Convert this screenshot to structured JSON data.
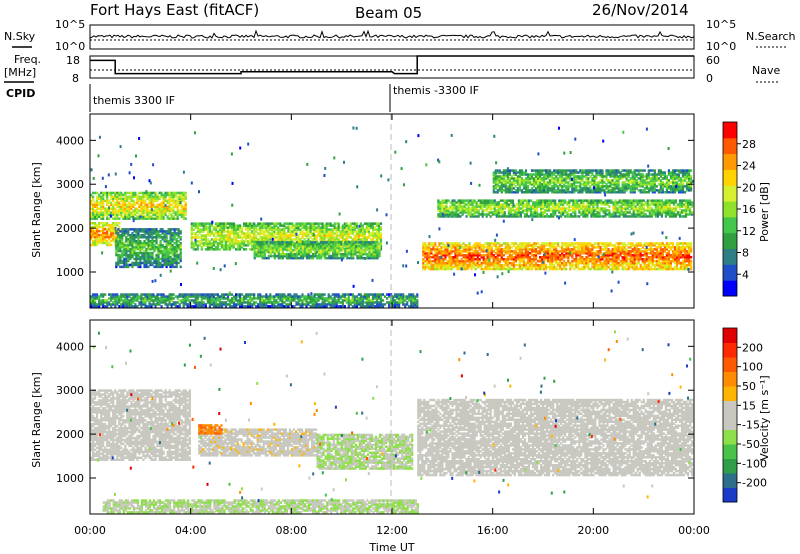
{
  "header": {
    "station": "Fort Hays East (fitACF)",
    "beam": "Beam 05",
    "date": "26/Nov/2014"
  },
  "top_panels": {
    "left_labels": {
      "nsky": "N.Sky",
      "freq": "Freq.",
      "freq_unit": "[MHz]",
      "cpid": "CPID"
    },
    "right_labels": {
      "nsearch": "N.Search",
      "nave": "Nave"
    },
    "noise_ticks_left": [
      "10^5",
      "10^0"
    ],
    "noise_ticks_right": [
      "10^5",
      "10^0"
    ],
    "freq_ticks": [
      "18",
      "8"
    ],
    "nave_ticks": [
      "60",
      "0"
    ],
    "cpid_segments": [
      {
        "start_hour": 0,
        "label": "themis 3300 IF"
      },
      {
        "start_hour": 12,
        "label": "themis -3300 IF"
      }
    ],
    "freq_steps": [
      {
        "x": 0,
        "y": 16
      },
      {
        "x": 1,
        "y": 16
      },
      {
        "x": 1,
        "y": 10
      },
      {
        "x": 3.5,
        "y": 10
      },
      {
        "x": 6,
        "y": 10
      },
      {
        "x": 6,
        "y": 10.8
      },
      {
        "x": 12,
        "y": 10.8
      },
      {
        "x": 12.1,
        "y": 10
      },
      {
        "x": 13,
        "y": 10
      },
      {
        "x": 13,
        "y": 18
      },
      {
        "x": 24,
        "y": 18
      }
    ]
  },
  "chart_data": [
    {
      "type": "heatmap",
      "name": "power",
      "ylabel": "Slant Range [km]",
      "xlabel": "",
      "xlim": [
        0,
        24
      ],
      "ylim": [
        180,
        4600
      ],
      "y_ticks": [
        "4000",
        "3000",
        "2000",
        "1000"
      ],
      "colorbar": {
        "label": "Power [dB]",
        "ticks": [
          "28",
          "24",
          "20",
          "16",
          "12",
          "8",
          "4"
        ],
        "colors": [
          "#0000ff",
          "#1f4fc8",
          "#2e7e86",
          "#2f9f40",
          "#44c64a",
          "#8ee32a",
          "#d6f030",
          "#ffd200",
          "#ff9a00",
          "#ff5a00",
          "#ff0000"
        ],
        "range": [
          0,
          32
        ]
      },
      "bands": [
        {
          "t0": 0.0,
          "t1": 3.8,
          "r0": 2200,
          "r1": 2800,
          "v": 14
        },
        {
          "t0": 0.0,
          "t1": 1.2,
          "r0": 1600,
          "r1": 2100,
          "v": 18
        },
        {
          "t0": 1.0,
          "t1": 3.6,
          "r0": 1100,
          "r1": 2000,
          "v": 6
        },
        {
          "t0": 4.0,
          "t1": 11.6,
          "r0": 1500,
          "r1": 2100,
          "v": 12
        },
        {
          "t0": 6.5,
          "t1": 11.5,
          "r0": 1300,
          "r1": 1700,
          "v": 9
        },
        {
          "t0": 13.2,
          "t1": 23.9,
          "r0": 1050,
          "r1": 1650,
          "v": 20
        },
        {
          "t0": 13.8,
          "t1": 23.9,
          "r0": 2250,
          "r1": 2650,
          "v": 10
        },
        {
          "t0": 16.0,
          "t1": 23.9,
          "r0": 2800,
          "r1": 3300,
          "v": 8
        },
        {
          "t0": 0.0,
          "t1": 13.0,
          "r0": 200,
          "r1": 500,
          "v": 5
        }
      ]
    },
    {
      "type": "heatmap",
      "name": "velocity",
      "ylabel": "Slant Range [km]",
      "xlabel": "Time UT",
      "xlim": [
        0,
        24
      ],
      "ylim": [
        180,
        4600
      ],
      "x_ticks": [
        "00:00",
        "04:00",
        "08:00",
        "12:00",
        "16:00",
        "20:00",
        "00:00"
      ],
      "y_ticks": [
        "4000",
        "3000",
        "2000",
        "1000"
      ],
      "colorbar": {
        "label": "Velocity [m s⁻¹]",
        "ticks": [
          "200",
          "100",
          "50",
          "15",
          "-15",
          "-50",
          "-100",
          "-200"
        ],
        "colors": [
          "#1a3cc8",
          "#2d6e8a",
          "#2f9d4a",
          "#4ac24a",
          "#8ee04a",
          "#c8c8c0",
          "#c8c8c0",
          "#ffb400",
          "#ff8c00",
          "#ff5a00",
          "#ff2a00",
          "#e00000"
        ],
        "range": [
          -250,
          250
        ]
      },
      "bands": [
        {
          "t0": 0.0,
          "t1": 4.0,
          "r0": 1400,
          "r1": 3000,
          "v": 0
        },
        {
          "t0": 4.3,
          "t1": 9.0,
          "r0": 1500,
          "r1": 2100,
          "v": 30
        },
        {
          "t0": 4.3,
          "t1": 5.2,
          "r0": 2000,
          "r1": 2200,
          "v": 120
        },
        {
          "t0": 9.0,
          "t1": 12.8,
          "r0": 1200,
          "r1": 2000,
          "v": -40
        },
        {
          "t0": 13.0,
          "t1": 23.9,
          "r0": 1050,
          "r1": 2800,
          "v": 0
        },
        {
          "t0": 0.5,
          "t1": 13.0,
          "r0": 200,
          "r1": 500,
          "v": -40
        }
      ]
    }
  ]
}
